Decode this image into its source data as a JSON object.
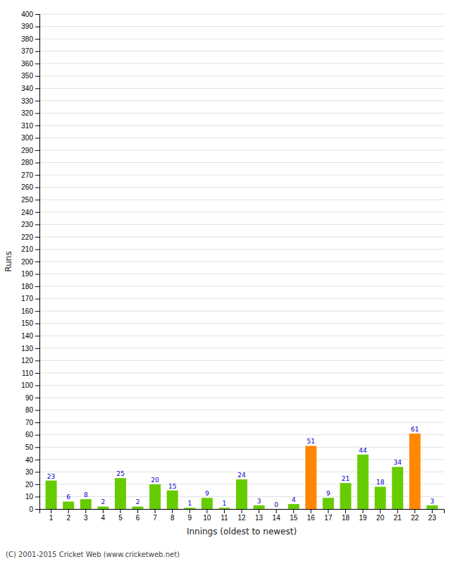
{
  "chart_data": {
    "type": "bar",
    "xlabel": "Innings (oldest to newest)",
    "ylabel": "Runs",
    "categories": [
      1,
      2,
      3,
      4,
      5,
      6,
      7,
      8,
      9,
      10,
      11,
      12,
      13,
      14,
      15,
      16,
      17,
      18,
      19,
      20,
      21,
      22,
      23
    ],
    "values": [
      23,
      6,
      8,
      2,
      25,
      2,
      20,
      15,
      1,
      9,
      1,
      24,
      3,
      0,
      4,
      51,
      9,
      21,
      44,
      18,
      34,
      61,
      3
    ],
    "colors": [
      "#66cc00",
      "#66cc00",
      "#66cc00",
      "#66cc00",
      "#66cc00",
      "#66cc00",
      "#66cc00",
      "#66cc00",
      "#66cc00",
      "#66cc00",
      "#66cc00",
      "#66cc00",
      "#66cc00",
      "#66cc00",
      "#66cc00",
      "#ff8800",
      "#66cc00",
      "#66cc00",
      "#66cc00",
      "#66cc00",
      "#66cc00",
      "#ff8800",
      "#66cc00"
    ],
    "ylim": [
      0,
      400
    ],
    "yticks": [
      0,
      10,
      20,
      30,
      40,
      50,
      60,
      70,
      80,
      90,
      100,
      110,
      120,
      130,
      140,
      150,
      160,
      170,
      180,
      190,
      200,
      210,
      220,
      230,
      240,
      250,
      260,
      270,
      280,
      290,
      300,
      310,
      320,
      330,
      340,
      350,
      360,
      370,
      380,
      390,
      400
    ],
    "grid": true,
    "data_labels": true,
    "annotations": [
      "(C) 2001-2015 Cricket Web (www.cricketweb.net)"
    ]
  }
}
